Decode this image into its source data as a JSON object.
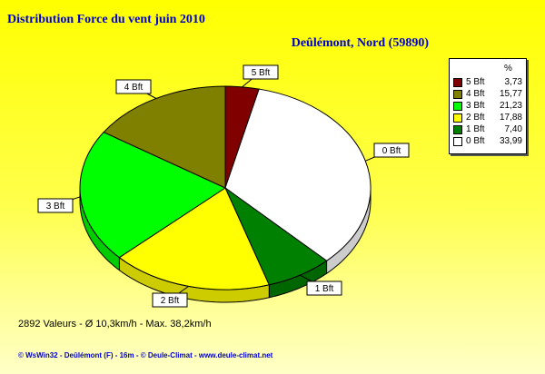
{
  "title": "Distribution Force du vent  juin 2010",
  "subtitle": "Deûlémont, Nord (59890)",
  "legend_header": "%",
  "footer_stats": "2892 Valeurs   -   Ø 10,3km/h  -  Max. 38,2km/h",
  "footer_credits": "© WsWin32  -  Deûlémont (F) - 16m  -  © Deule-Climat - www.deule-climat.net",
  "chart_data": {
    "type": "pie",
    "title": "Distribution Force du vent  juin 2010",
    "subtitle": "Deûlémont, Nord (59890)",
    "legend_placement": "right",
    "slices": [
      {
        "label": "5 Bft",
        "legend_label": "5 Bft",
        "value": 3.73,
        "value_text": "3,73",
        "color": "#800000"
      },
      {
        "label": "0 Bft",
        "legend_label": "0 Bft",
        "value": 33.99,
        "value_text": "33,99",
        "color": "#ffffff"
      },
      {
        "label": "1 Bft",
        "legend_label": "1 Bft",
        "value": 7.4,
        "value_text": "7,40",
        "color": "#008000"
      },
      {
        "label": "2 Bft",
        "legend_label": "2 Bft",
        "value": 17.88,
        "value_text": "17,88",
        "color": "#ffff00"
      },
      {
        "label": "3 Bft",
        "legend_label": "3 Bft",
        "value": 21.23,
        "value_text": "21,23",
        "color": "#00ff00"
      },
      {
        "label": "4 Bft",
        "legend_label": "4 Bft",
        "value": 15.77,
        "value_text": "15,77",
        "color": "#808000"
      }
    ],
    "legend_order": [
      "5 Bft",
      "4 Bft",
      "3 Bft",
      "2 Bft",
      "1 Bft",
      "0 Bft"
    ]
  }
}
